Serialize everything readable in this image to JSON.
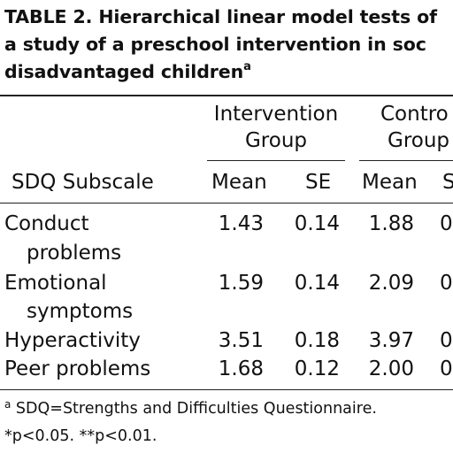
{
  "title": {
    "line1": "TABLE 2.  Hierarchical linear model tests of",
    "line2": "a study of a preschool intervention in soc",
    "line3": "disadvantaged children",
    "superscript": "a"
  },
  "groups": {
    "intervention": [
      "Intervention",
      "Group"
    ],
    "control": [
      "Contro",
      "Group"
    ]
  },
  "columns": {
    "subscale": "SDQ Subscale",
    "mean": "Mean",
    "se": "SE",
    "control_mean": "Mean",
    "control_se": "S"
  },
  "rows": [
    {
      "label": [
        "Conduct",
        "problems"
      ],
      "int_mean": "1.43",
      "int_se": "0.14",
      "ctl_mean": "1.88",
      "ctl_se": "0"
    },
    {
      "label": [
        "Emotional",
        "symptoms"
      ],
      "int_mean": "1.59",
      "int_se": "0.14",
      "ctl_mean": "2.09",
      "ctl_se": "0"
    },
    {
      "label": [
        "Hyperactivity"
      ],
      "int_mean": "3.51",
      "int_se": "0.18",
      "ctl_mean": "3.97",
      "ctl_se": "0"
    },
    {
      "label": [
        "Peer problems"
      ],
      "int_mean": "1.68",
      "int_se": "0.12",
      "ctl_mean": "2.00",
      "ctl_se": "0"
    }
  ],
  "footnotes": {
    "marker": "a",
    "note_a": " SDQ=Strengths and Difficulties Questionnaire.",
    "note_p": "*p<0.05. **p<0.01."
  }
}
